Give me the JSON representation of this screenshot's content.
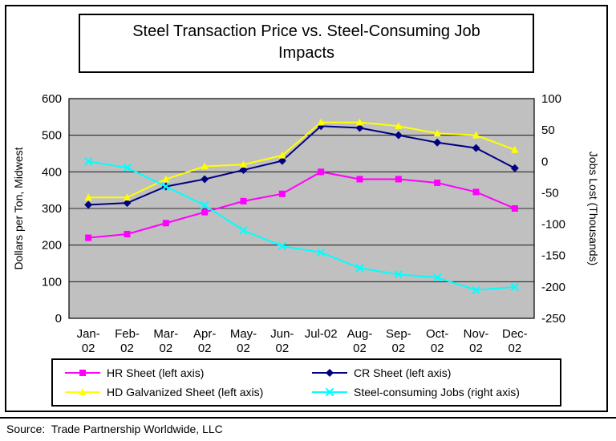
{
  "title": "Steel Transaction Price vs. Steel-Consuming Job Impacts",
  "source": "Source:  Trade Partnership Worldwide, LLC",
  "chart_data": {
    "type": "line",
    "title": "Steel Transaction Price vs. Steel-Consuming Job Impacts",
    "plot_bg": "#C0C0C0",
    "grid": true,
    "legend_position": "bottom",
    "categories": [
      "Jan-02",
      "Feb-02",
      "Mar-02",
      "Apr-02",
      "May-02",
      "Jun-02",
      "Jul-02",
      "Aug-02",
      "Sep-02",
      "Oct-02",
      "Nov-02",
      "Dec-02"
    ],
    "category_labels": [
      [
        "Jan-",
        "02"
      ],
      [
        "Feb-",
        "02"
      ],
      [
        "Mar-",
        "02"
      ],
      [
        "Apr-",
        "02"
      ],
      [
        "May-",
        "02"
      ],
      [
        "Jun-",
        "02"
      ],
      [
        "Jul-02",
        ""
      ],
      [
        "Aug-",
        "02"
      ],
      [
        "Sep-",
        "02"
      ],
      [
        "Oct-",
        "02"
      ],
      [
        "Nov-",
        "02"
      ],
      [
        "Dec-",
        "02"
      ]
    ],
    "left_axis": {
      "label": "Dollars per Ton, Midwest",
      "min": 0,
      "max": 600,
      "step": 100,
      "ticks": [
        600,
        500,
        400,
        300,
        200,
        100,
        0
      ]
    },
    "right_axis": {
      "label": "Jobs Lost (Thousands)",
      "min": -250,
      "max": 100,
      "step": 50,
      "ticks": [
        100,
        50,
        0,
        -50,
        -100,
        -150,
        -200,
        -250
      ]
    },
    "series": [
      {
        "name": "HR Sheet (left axis)",
        "axis": "left",
        "color": "#FF00FF",
        "marker": "square",
        "values": [
          220,
          230,
          260,
          290,
          320,
          340,
          400,
          380,
          380,
          370,
          345,
          300
        ]
      },
      {
        "name": "CR Sheet (left axis)",
        "axis": "left",
        "color": "#000080",
        "marker": "diamond",
        "values": [
          310,
          315,
          360,
          380,
          405,
          430,
          525,
          520,
          500,
          480,
          465,
          410
        ]
      },
      {
        "name": "HD Galvanized Sheet (left axis)",
        "axis": "left",
        "color": "#FFFF00",
        "marker": "triangle",
        "values": [
          330,
          330,
          380,
          415,
          420,
          445,
          535,
          535,
          525,
          505,
          500,
          460
        ]
      },
      {
        "name": "Steel-consuming Jobs (right axis)",
        "axis": "right",
        "color": "#00FFFF",
        "marker": "x",
        "values": [
          0,
          -10,
          -40,
          -70,
          -110,
          -135,
          -145,
          -170,
          -180,
          -185,
          -205,
          -200
        ]
      }
    ]
  }
}
